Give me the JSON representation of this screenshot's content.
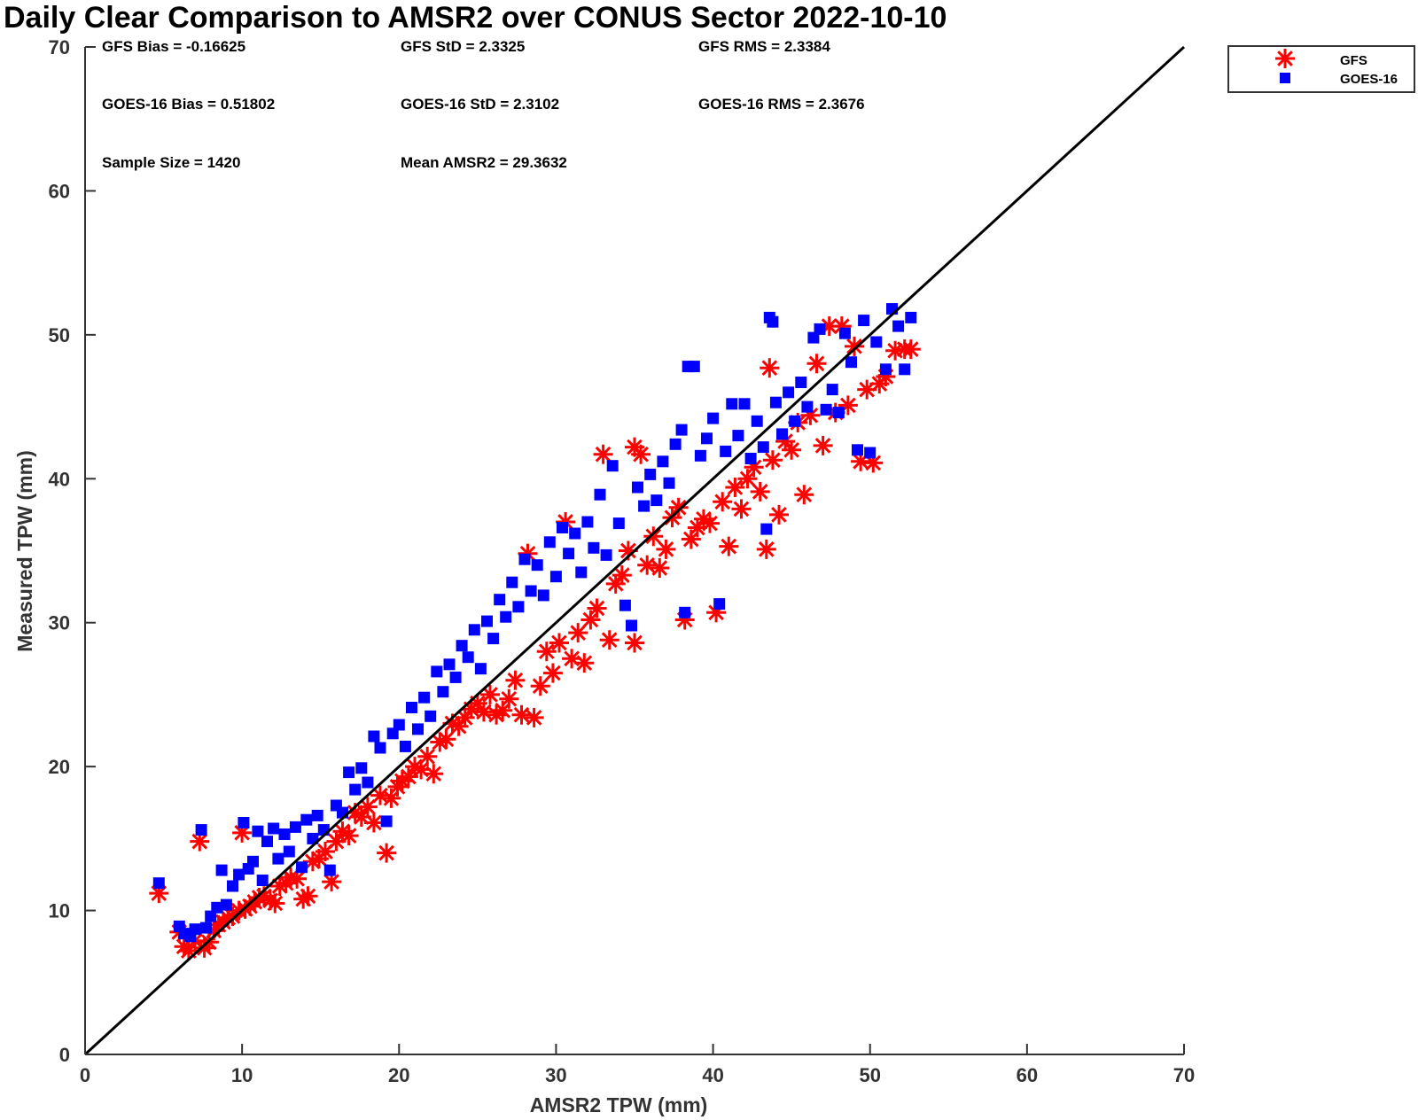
{
  "chart_data": {
    "type": "scatter",
    "title": "Daily Clear Comparison to AMSR2 over CONUS Sector 2022-10-10",
    "xlabel": "AMSR2 TPW (mm)",
    "ylabel": "Measured TPW (mm)",
    "xlim": [
      0,
      70
    ],
    "ylim": [
      0,
      70
    ],
    "x_ticks": [
      "0",
      "10",
      "20",
      "30",
      "40",
      "50",
      "60",
      "70"
    ],
    "y_ticks": [
      "0",
      "10",
      "20",
      "30",
      "40",
      "50",
      "60",
      "70"
    ],
    "grid": false,
    "legend_position": "top-right (outside plot)",
    "reference_line": {
      "x": [
        0,
        70
      ],
      "y": [
        0,
        70
      ],
      "color": "#000000"
    },
    "stats": [
      {
        "id": "gfs-bias",
        "text": "GFS Bias = -0.16625"
      },
      {
        "id": "gfs-std",
        "text": "GFS StD = 2.3325"
      },
      {
        "id": "gfs-rms",
        "text": "GFS RMS = 2.3384"
      },
      {
        "id": "goes-bias",
        "text": "GOES-16 Bias = 0.51802"
      },
      {
        "id": "goes-std",
        "text": "GOES-16 StD = 2.3102"
      },
      {
        "id": "goes-rms",
        "text": "GOES-16 RMS = 2.3676"
      },
      {
        "id": "sample-size",
        "text": "Sample Size = 1420"
      },
      {
        "id": "mean-amsr2",
        "text": "Mean AMSR2 = 29.3632"
      }
    ],
    "series": [
      {
        "name": "GFS",
        "marker": "asterisk",
        "color": "#ff0000",
        "points": [
          [
            4.7,
            11.2
          ],
          [
            6.0,
            8.5
          ],
          [
            6.3,
            7.5
          ],
          [
            6.6,
            7.2
          ],
          [
            7.0,
            7.9
          ],
          [
            7.3,
            14.8
          ],
          [
            7.6,
            7.4
          ],
          [
            7.9,
            7.8
          ],
          [
            8.2,
            8.6
          ],
          [
            8.5,
            9.0
          ],
          [
            8.8,
            9.2
          ],
          [
            9.1,
            9.5
          ],
          [
            9.4,
            9.6
          ],
          [
            9.8,
            10.0
          ],
          [
            10.0,
            15.4
          ],
          [
            10.2,
            10.1
          ],
          [
            10.5,
            10.3
          ],
          [
            10.8,
            10.6
          ],
          [
            11.1,
            10.9
          ],
          [
            11.4,
            11.0
          ],
          [
            11.8,
            10.7
          ],
          [
            12.1,
            10.5
          ],
          [
            12.4,
            11.7
          ],
          [
            12.8,
            11.9
          ],
          [
            13.1,
            12.3
          ],
          [
            13.5,
            12.2
          ],
          [
            13.9,
            10.8
          ],
          [
            14.2,
            11.0
          ],
          [
            14.5,
            13.4
          ],
          [
            14.9,
            13.6
          ],
          [
            15.3,
            14.1
          ],
          [
            15.7,
            12.0
          ],
          [
            16.0,
            14.8
          ],
          [
            16.4,
            15.5
          ],
          [
            16.8,
            15.2
          ],
          [
            17.2,
            16.8
          ],
          [
            17.6,
            16.5
          ],
          [
            18.0,
            17.2
          ],
          [
            18.4,
            16.1
          ],
          [
            18.8,
            18.0
          ],
          [
            19.2,
            14.0
          ],
          [
            19.5,
            17.8
          ],
          [
            19.9,
            18.6
          ],
          [
            20.2,
            19.0
          ],
          [
            20.6,
            19.3
          ],
          [
            21.0,
            20.0
          ],
          [
            21.4,
            19.8
          ],
          [
            21.8,
            20.7
          ],
          [
            22.2,
            19.5
          ],
          [
            22.6,
            21.7
          ],
          [
            23.0,
            21.9
          ],
          [
            23.4,
            23.0
          ],
          [
            23.8,
            22.8
          ],
          [
            24.2,
            23.4
          ],
          [
            24.6,
            24.0
          ],
          [
            25.0,
            24.4
          ],
          [
            25.4,
            23.8
          ],
          [
            25.8,
            25.0
          ],
          [
            26.2,
            23.6
          ],
          [
            26.6,
            23.9
          ],
          [
            27.0,
            24.7
          ],
          [
            27.4,
            26.0
          ],
          [
            27.8,
            23.6
          ],
          [
            28.2,
            34.8
          ],
          [
            28.6,
            23.4
          ],
          [
            29.0,
            25.6
          ],
          [
            29.4,
            28.0
          ],
          [
            29.8,
            26.5
          ],
          [
            30.2,
            28.6
          ],
          [
            30.6,
            37.0
          ],
          [
            31.0,
            27.5
          ],
          [
            31.4,
            29.3
          ],
          [
            31.8,
            27.2
          ],
          [
            32.2,
            30.2
          ],
          [
            32.6,
            31.0
          ],
          [
            33.0,
            41.7
          ],
          [
            33.4,
            28.8
          ],
          [
            33.8,
            32.7
          ],
          [
            34.2,
            33.3
          ],
          [
            34.6,
            35.0
          ],
          [
            35.0,
            28.6
          ],
          [
            35.0,
            42.2
          ],
          [
            35.4,
            41.7
          ],
          [
            35.8,
            34.0
          ],
          [
            36.2,
            36.0
          ],
          [
            36.6,
            33.8
          ],
          [
            37.0,
            35.1
          ],
          [
            37.4,
            37.3
          ],
          [
            37.8,
            38.0
          ],
          [
            38.2,
            30.2
          ],
          [
            38.6,
            35.8
          ],
          [
            39.0,
            36.6
          ],
          [
            39.4,
            37.2
          ],
          [
            39.8,
            36.9
          ],
          [
            40.2,
            30.7
          ],
          [
            40.6,
            38.4
          ],
          [
            41.0,
            35.3
          ],
          [
            41.4,
            39.4
          ],
          [
            41.8,
            37.9
          ],
          [
            42.2,
            40.0
          ],
          [
            42.6,
            40.8
          ],
          [
            43.0,
            39.1
          ],
          [
            43.4,
            35.1
          ],
          [
            43.6,
            47.7
          ],
          [
            43.8,
            41.3
          ],
          [
            44.2,
            37.5
          ],
          [
            44.6,
            42.6
          ],
          [
            45.0,
            42.0
          ],
          [
            45.4,
            43.9
          ],
          [
            45.8,
            38.9
          ],
          [
            46.2,
            44.4
          ],
          [
            46.6,
            48.0
          ],
          [
            47.0,
            42.3
          ],
          [
            47.4,
            50.6
          ],
          [
            47.8,
            44.6
          ],
          [
            48.2,
            50.6
          ],
          [
            48.6,
            45.1
          ],
          [
            49.0,
            49.2
          ],
          [
            49.4,
            41.2
          ],
          [
            49.8,
            46.2
          ],
          [
            50.2,
            41.1
          ],
          [
            50.6,
            46.6
          ],
          [
            51.0,
            47.1
          ],
          [
            51.6,
            48.9
          ],
          [
            52.2,
            49.0
          ],
          [
            52.6,
            49.0
          ]
        ]
      },
      {
        "name": "GOES-16",
        "marker": "square",
        "color": "#0000ff",
        "points": [
          [
            4.7,
            11.9
          ],
          [
            6.0,
            8.9
          ],
          [
            6.3,
            8.4
          ],
          [
            6.7,
            8.2
          ],
          [
            7.0,
            8.7
          ],
          [
            7.4,
            15.6
          ],
          [
            7.7,
            8.8
          ],
          [
            8.0,
            9.6
          ],
          [
            8.4,
            10.2
          ],
          [
            8.7,
            12.8
          ],
          [
            9.0,
            10.4
          ],
          [
            9.4,
            11.7
          ],
          [
            9.8,
            12.5
          ],
          [
            10.1,
            16.1
          ],
          [
            10.4,
            12.9
          ],
          [
            10.7,
            13.4
          ],
          [
            11.0,
            15.5
          ],
          [
            11.3,
            12.1
          ],
          [
            11.6,
            14.8
          ],
          [
            12.0,
            15.7
          ],
          [
            12.3,
            13.6
          ],
          [
            12.7,
            15.3
          ],
          [
            13.0,
            14.1
          ],
          [
            13.4,
            15.8
          ],
          [
            13.8,
            13.0
          ],
          [
            14.1,
            16.3
          ],
          [
            14.5,
            15.0
          ],
          [
            14.8,
            16.6
          ],
          [
            15.2,
            15.6
          ],
          [
            15.6,
            12.8
          ],
          [
            16.0,
            17.3
          ],
          [
            16.4,
            16.8
          ],
          [
            16.8,
            19.6
          ],
          [
            17.2,
            18.4
          ],
          [
            17.6,
            19.9
          ],
          [
            18.0,
            18.9
          ],
          [
            18.4,
            22.1
          ],
          [
            18.8,
            21.3
          ],
          [
            19.2,
            16.2
          ],
          [
            19.6,
            22.3
          ],
          [
            20.0,
            22.9
          ],
          [
            20.4,
            21.4
          ],
          [
            20.8,
            24.1
          ],
          [
            21.2,
            22.6
          ],
          [
            21.6,
            24.8
          ],
          [
            22.0,
            23.5
          ],
          [
            22.4,
            26.6
          ],
          [
            22.8,
            25.2
          ],
          [
            23.2,
            27.1
          ],
          [
            23.6,
            26.2
          ],
          [
            24.0,
            28.4
          ],
          [
            24.4,
            27.6
          ],
          [
            24.8,
            29.5
          ],
          [
            25.2,
            26.8
          ],
          [
            25.6,
            30.1
          ],
          [
            26.0,
            28.9
          ],
          [
            26.4,
            31.6
          ],
          [
            26.8,
            30.4
          ],
          [
            27.2,
            32.8
          ],
          [
            27.6,
            31.1
          ],
          [
            28.0,
            34.4
          ],
          [
            28.4,
            32.2
          ],
          [
            28.8,
            34.0
          ],
          [
            29.2,
            31.9
          ],
          [
            29.6,
            35.6
          ],
          [
            30.0,
            33.2
          ],
          [
            30.4,
            36.6
          ],
          [
            30.8,
            34.8
          ],
          [
            31.2,
            36.2
          ],
          [
            31.6,
            33.5
          ],
          [
            32.0,
            37.0
          ],
          [
            32.4,
            35.2
          ],
          [
            32.8,
            38.9
          ],
          [
            33.2,
            34.7
          ],
          [
            33.6,
            40.9
          ],
          [
            34.0,
            36.9
          ],
          [
            34.4,
            31.2
          ],
          [
            34.8,
            29.8
          ],
          [
            35.2,
            39.4
          ],
          [
            35.6,
            38.1
          ],
          [
            36.0,
            40.3
          ],
          [
            36.4,
            38.5
          ],
          [
            36.8,
            41.2
          ],
          [
            37.2,
            39.7
          ],
          [
            37.6,
            42.4
          ],
          [
            38.0,
            43.4
          ],
          [
            38.2,
            30.7
          ],
          [
            38.4,
            47.8
          ],
          [
            38.8,
            47.8
          ],
          [
            39.2,
            41.6
          ],
          [
            39.6,
            42.8
          ],
          [
            40.0,
            44.2
          ],
          [
            40.4,
            31.3
          ],
          [
            40.8,
            41.9
          ],
          [
            41.2,
            45.2
          ],
          [
            41.6,
            43.0
          ],
          [
            42.0,
            45.2
          ],
          [
            42.4,
            41.4
          ],
          [
            42.8,
            44.0
          ],
          [
            43.2,
            42.2
          ],
          [
            43.4,
            36.5
          ],
          [
            43.6,
            51.2
          ],
          [
            43.8,
            50.9
          ],
          [
            44.0,
            45.3
          ],
          [
            44.4,
            43.1
          ],
          [
            44.8,
            46.0
          ],
          [
            45.2,
            44.0
          ],
          [
            45.6,
            46.7
          ],
          [
            46.0,
            45.0
          ],
          [
            46.4,
            49.8
          ],
          [
            46.8,
            50.4
          ],
          [
            47.2,
            44.8
          ],
          [
            47.6,
            46.2
          ],
          [
            48.0,
            44.6
          ],
          [
            48.4,
            50.1
          ],
          [
            48.8,
            48.1
          ],
          [
            49.2,
            42.0
          ],
          [
            49.6,
            51.0
          ],
          [
            50.0,
            41.8
          ],
          [
            50.4,
            49.5
          ],
          [
            51.0,
            47.6
          ],
          [
            51.4,
            51.8
          ],
          [
            51.8,
            50.6
          ],
          [
            52.2,
            47.6
          ],
          [
            52.6,
            51.2
          ]
        ]
      }
    ]
  }
}
